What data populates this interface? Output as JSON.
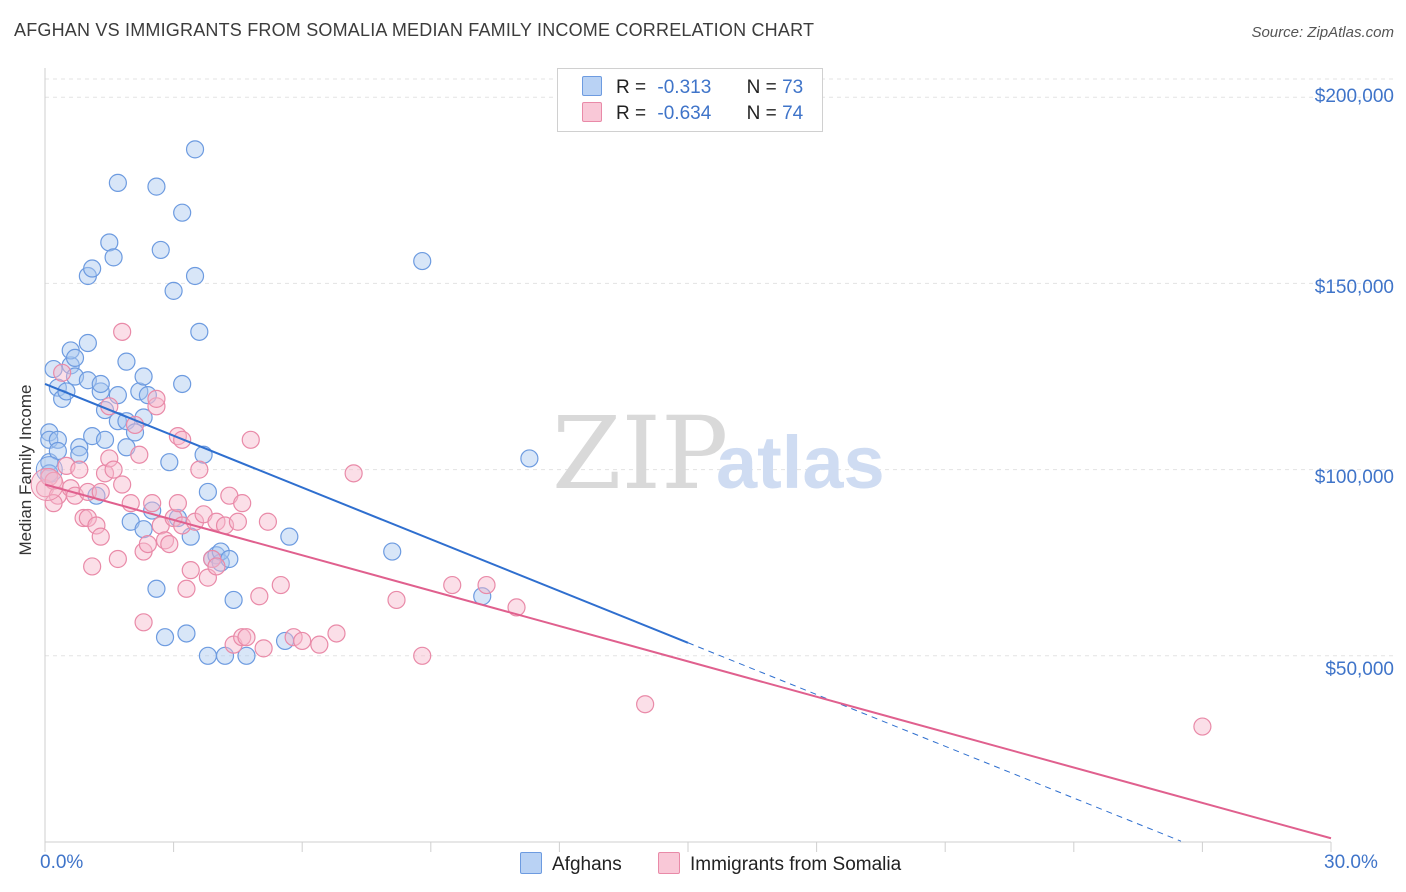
{
  "title": "AFGHAN VS IMMIGRANTS FROM SOMALIA MEDIAN FAMILY INCOME CORRELATION CHART",
  "source": "Source: ZipAtlas.com",
  "watermark": {
    "zip": "ZIP",
    "atlas": "atlas"
  },
  "legend": {
    "afghan": {
      "r_label": "R =",
      "r": "-0.313",
      "n_label": "N =",
      "n": "73"
    },
    "somalia": {
      "r_label": "R =",
      "r": "-0.634",
      "n_label": "N =",
      "n": "74"
    }
  },
  "bottom_legend": {
    "afghan": "Afghans",
    "somalia": "Immigrants from Somalia"
  },
  "colors": {
    "afghan_fill": "#a9c7f0",
    "afghan_stroke": "#6d9be0",
    "afghan_line": "#2f6fcf",
    "somalia_fill": "#f6b8cb",
    "somalia_stroke": "#e98aa8",
    "somalia_line": "#e0608e",
    "axis_text": "#3f74c9"
  },
  "chart_data": {
    "type": "scatter",
    "title": "AFGHAN VS IMMIGRANTS FROM SOMALIA MEDIAN FAMILY INCOME CORRELATION CHART",
    "xlabel": "",
    "ylabel": "Median Family Income",
    "xlim": [
      0,
      30
    ],
    "ylim": [
      0,
      210000
    ],
    "x_tick_labels": [
      "0.0%",
      "30.0%"
    ],
    "y_tick_labels": [
      "$200,000",
      "$150,000",
      "$100,000",
      "$50,000"
    ],
    "y_tick_values": [
      200000,
      150000,
      100000,
      50000
    ],
    "grid": true,
    "series": [
      {
        "name": "Afghans",
        "R": -0.313,
        "N": 73,
        "trend": {
          "x0": 0,
          "y0": 123000,
          "x1": 15,
          "y1": 53500,
          "dash_to_x": 26.5
        },
        "points": [
          [
            0.1,
            110000
          ],
          [
            0.1,
            108000
          ],
          [
            0.1,
            102000
          ],
          [
            0.1,
            99000
          ],
          [
            0.2,
            127000
          ],
          [
            0.3,
            122000
          ],
          [
            0.3,
            108000
          ],
          [
            0.4,
            119000
          ],
          [
            0.5,
            121000
          ],
          [
            0.6,
            128000
          ],
          [
            0.6,
            132000
          ],
          [
            0.7,
            130000
          ],
          [
            0.7,
            125000
          ],
          [
            0.8,
            106000
          ],
          [
            0.8,
            104000
          ],
          [
            1.0,
            134000
          ],
          [
            1.0,
            124000
          ],
          [
            1.0,
            152000
          ],
          [
            1.1,
            154000
          ],
          [
            1.1,
            109000
          ],
          [
            1.2,
            93000
          ],
          [
            1.3,
            121000
          ],
          [
            1.3,
            123000
          ],
          [
            1.4,
            108000
          ],
          [
            1.4,
            116000
          ],
          [
            1.5,
            161000
          ],
          [
            1.6,
            157000
          ],
          [
            1.7,
            113000
          ],
          [
            1.7,
            120000
          ],
          [
            1.7,
            177000
          ],
          [
            1.9,
            129000
          ],
          [
            1.9,
            113000
          ],
          [
            1.9,
            106000
          ],
          [
            2.0,
            86000
          ],
          [
            2.1,
            110000
          ],
          [
            2.2,
            121000
          ],
          [
            2.3,
            84000
          ],
          [
            2.3,
            125000
          ],
          [
            2.3,
            114000
          ],
          [
            2.4,
            120000
          ],
          [
            2.5,
            89000
          ],
          [
            2.6,
            68000
          ],
          [
            2.6,
            176000
          ],
          [
            2.7,
            159000
          ],
          [
            2.8,
            55000
          ],
          [
            2.9,
            102000
          ],
          [
            3.0,
            148000
          ],
          [
            3.1,
            87000
          ],
          [
            3.2,
            123000
          ],
          [
            3.2,
            169000
          ],
          [
            3.3,
            56000
          ],
          [
            3.4,
            82000
          ],
          [
            3.5,
            186000
          ],
          [
            3.5,
            152000
          ],
          [
            3.6,
            137000
          ],
          [
            3.7,
            104000
          ],
          [
            3.8,
            94000
          ],
          [
            3.8,
            50000
          ],
          [
            3.9,
            76000
          ],
          [
            4.0,
            77000
          ],
          [
            4.1,
            75000
          ],
          [
            4.1,
            78000
          ],
          [
            4.2,
            50000
          ],
          [
            4.3,
            76000
          ],
          [
            4.4,
            65000
          ],
          [
            4.7,
            50000
          ],
          [
            5.6,
            54000
          ],
          [
            5.7,
            82000
          ],
          [
            8.1,
            78000
          ],
          [
            8.8,
            156000
          ],
          [
            10.2,
            66000
          ],
          [
            11.3,
            103000
          ],
          [
            0.3,
            105000
          ]
        ]
      },
      {
        "name": "Immigrants from Somalia",
        "R": -0.634,
        "N": 74,
        "trend": {
          "x0": 0,
          "y0": 96000,
          "x1": 30,
          "y1": 1000
        },
        "points": [
          [
            0.0,
            95000
          ],
          [
            0.1,
            98000
          ],
          [
            0.2,
            97000
          ],
          [
            0.3,
            93000
          ],
          [
            0.4,
            126000
          ],
          [
            0.5,
            101000
          ],
          [
            0.6,
            95000
          ],
          [
            0.7,
            93000
          ],
          [
            0.8,
            100000
          ],
          [
            0.9,
            87000
          ],
          [
            1.0,
            87000
          ],
          [
            1.0,
            94000
          ],
          [
            1.1,
            74000
          ],
          [
            1.2,
            85000
          ],
          [
            1.3,
            82000
          ],
          [
            1.3,
            94000
          ],
          [
            1.4,
            99000
          ],
          [
            1.5,
            117000
          ],
          [
            1.5,
            103000
          ],
          [
            1.7,
            76000
          ],
          [
            1.8,
            96000
          ],
          [
            1.8,
            137000
          ],
          [
            2.0,
            91000
          ],
          [
            2.1,
            112000
          ],
          [
            2.2,
            104000
          ],
          [
            2.3,
            59000
          ],
          [
            2.3,
            78000
          ],
          [
            2.4,
            80000
          ],
          [
            2.5,
            91000
          ],
          [
            2.6,
            117000
          ],
          [
            2.6,
            119000
          ],
          [
            2.7,
            85000
          ],
          [
            2.8,
            81000
          ],
          [
            2.9,
            80000
          ],
          [
            3.0,
            87000
          ],
          [
            3.1,
            91000
          ],
          [
            3.1,
            109000
          ],
          [
            3.2,
            108000
          ],
          [
            3.2,
            85000
          ],
          [
            3.3,
            68000
          ],
          [
            3.4,
            73000
          ],
          [
            3.5,
            86000
          ],
          [
            3.6,
            100000
          ],
          [
            3.7,
            88000
          ],
          [
            3.8,
            71000
          ],
          [
            3.9,
            76000
          ],
          [
            4.0,
            86000
          ],
          [
            4.0,
            74000
          ],
          [
            4.2,
            85000
          ],
          [
            4.3,
            93000
          ],
          [
            4.4,
            53000
          ],
          [
            4.5,
            86000
          ],
          [
            4.6,
            91000
          ],
          [
            4.6,
            55000
          ],
          [
            4.7,
            55000
          ],
          [
            4.8,
            108000
          ],
          [
            5.0,
            66000
          ],
          [
            5.1,
            52000
          ],
          [
            5.2,
            86000
          ],
          [
            5.5,
            69000
          ],
          [
            5.8,
            55000
          ],
          [
            6.0,
            54000
          ],
          [
            6.4,
            53000
          ],
          [
            6.8,
            56000
          ],
          [
            7.2,
            99000
          ],
          [
            8.2,
            65000
          ],
          [
            8.8,
            50000
          ],
          [
            9.5,
            69000
          ],
          [
            10.3,
            69000
          ],
          [
            11.0,
            63000
          ],
          [
            14.0,
            37000
          ],
          [
            27.0,
            31000
          ],
          [
            0.2,
            91000
          ],
          [
            1.6,
            100000
          ]
        ]
      }
    ]
  }
}
